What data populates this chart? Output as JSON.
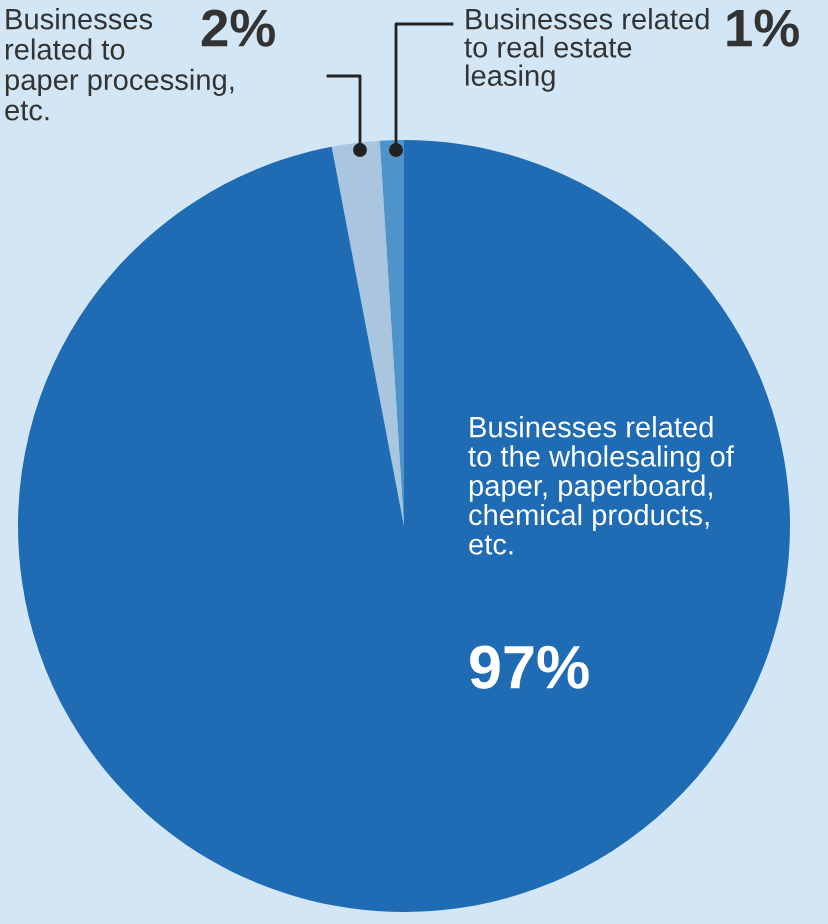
{
  "chart_data": {
    "type": "pie",
    "categories": [
      "Businesses\nrelated to\npaper processing,\netc.",
      "Businesses related\nto real estate\nleasing",
      "Businesses related\nto the wholesaling of\npaper, paperboard,\nchemical products,\netc."
    ],
    "values": [
      2,
      1,
      97
    ],
    "colors": [
      "#a9c6de",
      "#4f93cb",
      "#1f6cb5"
    ],
    "value_labels": [
      "2%",
      "1%",
      "97%"
    ]
  }
}
